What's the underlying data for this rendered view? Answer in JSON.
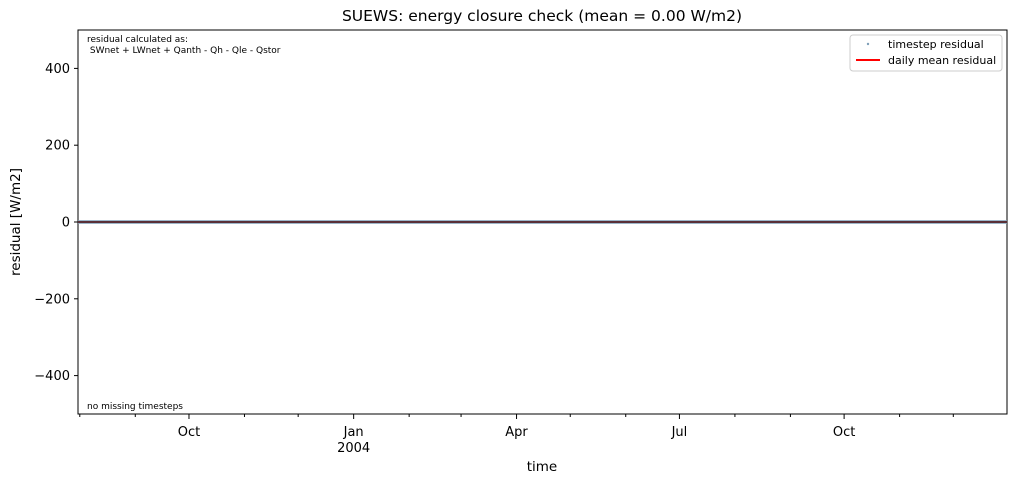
{
  "chart_data": {
    "type": "line",
    "title": "SUEWS: energy closure check (mean = 0.00 W/m2)",
    "xlabel": "time",
    "ylabel": "residual [W/m2]",
    "ylim": [
      -500,
      500
    ],
    "xlim": [
      "2003-07-31",
      "2004-12-31"
    ],
    "grid": false,
    "legend_position": "top-right",
    "yticks": [
      {
        "value": -400,
        "label": "−400"
      },
      {
        "value": -200,
        "label": "−200"
      },
      {
        "value": 0,
        "label": "0"
      },
      {
        "value": 200,
        "label": "200"
      },
      {
        "value": 400,
        "label": "400"
      }
    ],
    "xticks_major": [
      {
        "date": "2003-10-01",
        "label": "Oct",
        "sublabel": ""
      },
      {
        "date": "2004-01-01",
        "label": "Jan",
        "sublabel": "2004"
      },
      {
        "date": "2004-04-01",
        "label": "Apr",
        "sublabel": ""
      },
      {
        "date": "2004-07-01",
        "label": "Jul",
        "sublabel": ""
      },
      {
        "date": "2004-10-01",
        "label": "Oct",
        "sublabel": ""
      }
    ],
    "xticks_minor": [
      "2003-08-01",
      "2003-09-01",
      "2003-11-01",
      "2003-12-01",
      "2004-02-01",
      "2004-03-01",
      "2004-05-01",
      "2004-06-01",
      "2004-08-01",
      "2004-09-01",
      "2004-11-01",
      "2004-12-01"
    ],
    "series": [
      {
        "name": "timestep residual",
        "style": "markers",
        "color": "#7f9fb8",
        "x": [
          "2003-07-31",
          "2004-12-31"
        ],
        "y": [
          0,
          0
        ]
      },
      {
        "name": "daily mean residual",
        "style": "line",
        "color": "#ff0000",
        "x": [
          "2003-07-31",
          "2004-12-31"
        ],
        "y": [
          0,
          0
        ]
      }
    ],
    "annotations": {
      "top_left_line1": "residual calculated as:",
      "top_left_line2": " SWnet + LWnet + Qanth - Qh - Qle - Qstor",
      "bottom_left": "no missing timesteps"
    }
  }
}
